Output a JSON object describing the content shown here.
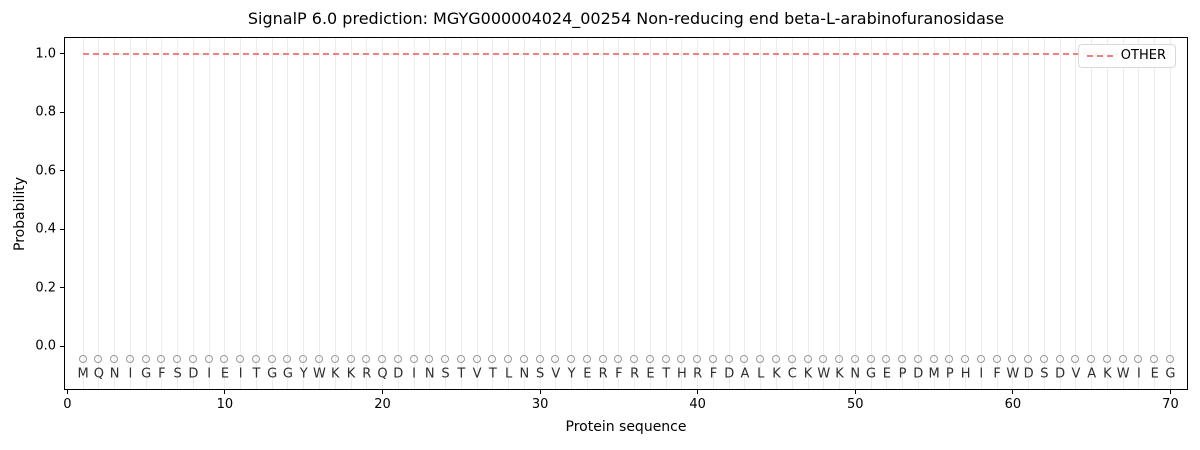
{
  "chart_data": {
    "type": "line",
    "title": "SignalP 6.0 prediction: MGYG000004024_00254 Non-reducing end beta-L-arabinofuranosidase",
    "xlabel": "Protein sequence",
    "ylabel": "Probability",
    "xlim": [
      -0.15,
      71.05
    ],
    "ylim": [
      -0.146,
      1.054
    ],
    "xticks": [
      0,
      10,
      20,
      30,
      40,
      50,
      60,
      70
    ],
    "yticks": [
      0.0,
      0.2,
      0.4,
      0.6,
      0.8,
      1.0
    ],
    "grid": {
      "axis": "x",
      "per_residue": true,
      "color": "#ececec"
    },
    "sequence": "MQNIGFSDIEITGGYWKKRQDINSTVTLNSVYERFRETHRFDALKCKWKNGEPDMPHIFWDSDVAKWIEG",
    "series": [
      {
        "name": "OTHER",
        "style": "dashed",
        "color": "#f08080",
        "x_start": 1,
        "x_end": 70,
        "value": 1.0
      }
    ],
    "residue_markers": {
      "shape": "open-circle",
      "y": -0.045,
      "color": "#9a9a9a"
    },
    "residue_label_y": -0.095,
    "legend": {
      "position": "upper-right",
      "entries": [
        {
          "label": "OTHER",
          "style": "dashed",
          "color": "#f08080"
        }
      ]
    }
  }
}
